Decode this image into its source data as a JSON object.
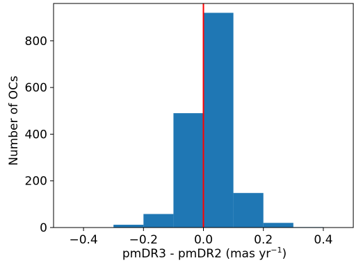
{
  "chart_data": {
    "type": "bar",
    "bins": [
      {
        "x0": -0.5,
        "x1": -0.4,
        "count": 0
      },
      {
        "x0": -0.4,
        "x1": -0.3,
        "count": 0
      },
      {
        "x0": -0.3,
        "x1": -0.2,
        "count": 12
      },
      {
        "x0": -0.2,
        "x1": -0.1,
        "count": 58
      },
      {
        "x0": -0.1,
        "x1": 0.0,
        "count": 490
      },
      {
        "x0": 0.0,
        "x1": 0.1,
        "count": 920
      },
      {
        "x0": 0.1,
        "x1": 0.2,
        "count": 148
      },
      {
        "x0": 0.2,
        "x1": 0.3,
        "count": 20
      },
      {
        "x0": 0.3,
        "x1": 0.4,
        "count": 2
      },
      {
        "x0": 0.4,
        "x1": 0.5,
        "count": 0
      }
    ],
    "xlim": [
      -0.5,
      0.5
    ],
    "ylim": [
      0,
      960
    ],
    "xticks": [
      -0.4,
      -0.2,
      0.0,
      0.2,
      0.4
    ],
    "xtick_labels": [
      "−0.4",
      "−0.2",
      "0.0",
      "0.2",
      "0.4"
    ],
    "yticks": [
      0,
      200,
      400,
      600,
      800
    ],
    "ytick_labels": [
      "0",
      "200",
      "400",
      "600",
      "800"
    ],
    "xlabel": "pmDR3 - pmDR2 (mas yr−1)",
    "xlabel_main": "pmDR3 - pmDR2 (mas yr",
    "xlabel_sup": "−1",
    "xlabel_close": ")",
    "ylabel": "Number of OCs",
    "reference_line_x": 0.0,
    "bar_color": "#1f77b4",
    "reference_line_color": "#ff0000",
    "grid": false,
    "legend": "none"
  }
}
